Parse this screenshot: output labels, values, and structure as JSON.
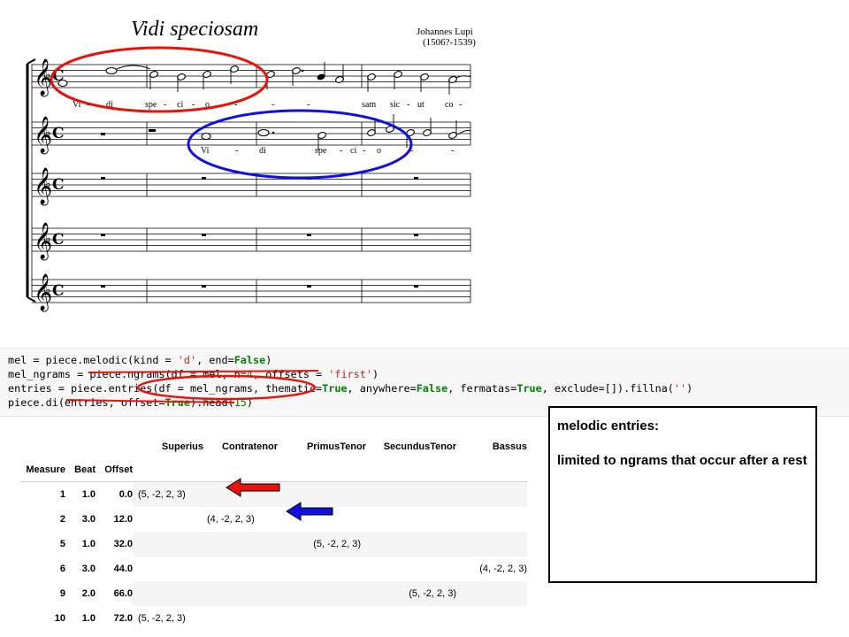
{
  "score": {
    "title": "Vidi speciosam",
    "composer": "Johannes Lupi",
    "dates": "(1506?-1539)",
    "lyrics_superius": [
      "Vi",
      "-",
      "di",
      "spe",
      "-",
      "ci",
      "-",
      "o",
      "-",
      "-",
      "-",
      "sam",
      "sic",
      "-",
      "ut",
      "co",
      "-"
    ],
    "lyrics_contratenor": [
      "Vi",
      "-",
      "di",
      "spe",
      "-",
      "ci",
      "-",
      "o",
      "-",
      "-"
    ]
  },
  "code": {
    "line1": [
      "mel = piece.melodic(kind = 'd', end=False)"
    ],
    "line2": [
      "mel_ngrams = piece.ngrams(df = mel, n=4, offsets = 'first')"
    ],
    "line3": [
      "entries = piece.entries(df = mel_ngrams, thematic=True, anywhere=False, fermatas=True, exclude=[]).fillna('')"
    ],
    "line4": [
      "piece.di(entries, offset=True).head(15)"
    ]
  },
  "table": {
    "columns": [
      "Superius",
      "Contratenor",
      "PrimusTenor",
      "SecundusTenor",
      "Bassus"
    ],
    "index_names": [
      "Measure",
      "Beat",
      "Offset"
    ],
    "rows": [
      {
        "measure": "1",
        "beat": "1.0",
        "offset": "0.0",
        "cells": [
          "(5, -2, 2, 3)",
          "",
          "",
          "",
          ""
        ]
      },
      {
        "measure": "2",
        "beat": "3.0",
        "offset": "12.0",
        "cells": [
          "",
          "(4, -2, 2, 3)",
          "",
          "",
          ""
        ]
      },
      {
        "measure": "5",
        "beat": "1.0",
        "offset": "32.0",
        "cells": [
          "",
          "",
          "(5, -2, 2, 3)",
          "",
          ""
        ]
      },
      {
        "measure": "6",
        "beat": "3.0",
        "offset": "44.0",
        "cells": [
          "",
          "",
          "",
          "",
          "(4, -2, 2, 3)"
        ]
      },
      {
        "measure": "9",
        "beat": "2.0",
        "offset": "66.0",
        "cells": [
          "",
          "",
          "",
          "(5, -2, 2, 3)",
          ""
        ]
      },
      {
        "measure": "10",
        "beat": "1.0",
        "offset": "72.0",
        "cells": [
          "(5, -2, 2, 3)",
          "",
          "",
          "",
          ""
        ]
      }
    ]
  },
  "note_box": {
    "title": "melodic entries:",
    "body": "limited to ngrams that occur after a rest"
  },
  "colors": {
    "annotation_red": "#e8120c",
    "annotation_blue": "#1010e0",
    "code_background": "#f7f7f7"
  }
}
